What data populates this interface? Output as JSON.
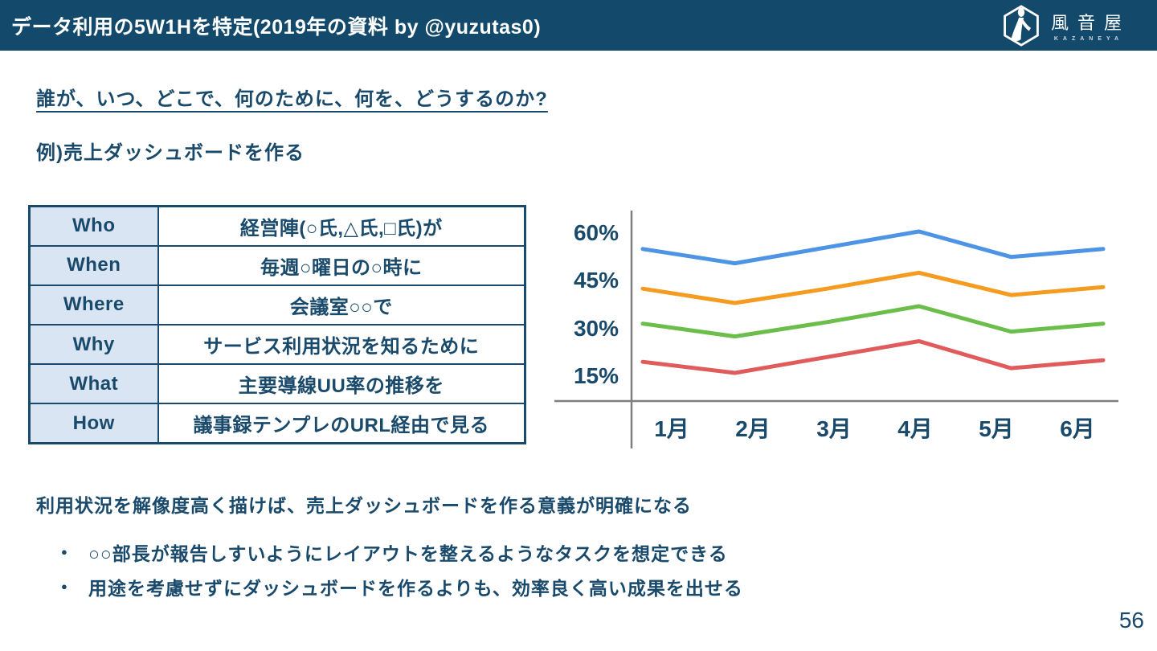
{
  "header": {
    "title": "データ利用の5W1Hを特定(2019年の資料 by @yuzutas0)",
    "logo": {
      "name": "風音屋",
      "romaji": "KAZANEYA"
    }
  },
  "content": {
    "heading": "誰が、いつ、どこで、何のために、何を、どうするのか?",
    "example_label": "例)売上ダッシュボードを作る",
    "table": {
      "rows": [
        {
          "label": "Who",
          "value": "経営陣(○氏,△氏,□氏)が"
        },
        {
          "label": "When",
          "value": "毎週○曜日の○時に"
        },
        {
          "label": "Where",
          "value": "会議室○○で"
        },
        {
          "label": "Why",
          "value": "サービス利用状況を知るために"
        },
        {
          "label": "What",
          "value": "主要導線UU率の推移を"
        },
        {
          "label": "How",
          "value": "議事録テンプレのURL経由で見る"
        }
      ]
    },
    "conclusion": "利用状況を解像度高く描けば、売上ダッシュボードを作る意義が明確になる",
    "bullets": [
      "○○部長が報告しすいようにレイアウトを整えるようなタスクを想定できる",
      "用途を考慮せずにダッシュボードを作るよりも、効率良く高い成果を出せる"
    ],
    "page_number": "56"
  },
  "colors": {
    "header_bg": "#134A6B",
    "text_navy": "#1A4A6B",
    "table_label_bg": "#D9E5F2",
    "axis_gray": "#7F7F7F"
  },
  "chart_data": {
    "type": "line",
    "title": "",
    "xlabel": "",
    "ylabel": "",
    "unit": "%",
    "x": [
      "1月",
      "2月",
      "3月",
      "4月",
      "5月",
      "6月"
    ],
    "y_ticks": [
      "60%",
      "45%",
      "30%",
      "15%"
    ],
    "y_tick_values": [
      60,
      45,
      30,
      15
    ],
    "ylim": [
      7,
      67
    ],
    "grid": false,
    "legend": "none",
    "series": [
      {
        "name": "blue",
        "color": "#4D94E5",
        "values": [
          55,
          50.5,
          55.5,
          60.5,
          52.5,
          55
        ]
      },
      {
        "name": "orange",
        "color": "#F49B20",
        "values": [
          42.5,
          38,
          42.5,
          47.5,
          40.5,
          43
        ]
      },
      {
        "name": "green",
        "color": "#6CBE4B",
        "values": [
          31.5,
          27.5,
          32,
          37,
          29,
          31.5
        ]
      },
      {
        "name": "red",
        "color": "#E05C5C",
        "values": [
          19.5,
          16,
          21,
          26,
          17.5,
          20
        ]
      }
    ]
  }
}
